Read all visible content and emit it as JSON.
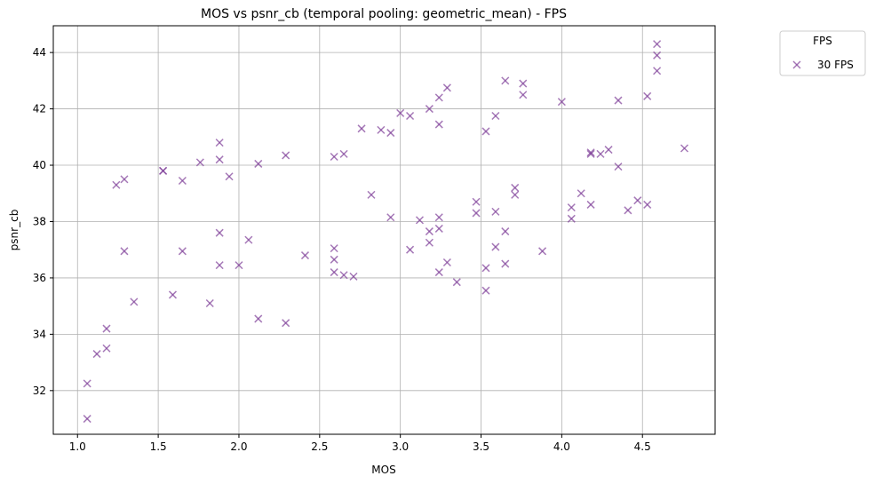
{
  "chart_data": {
    "type": "scatter",
    "title": "MOS vs psnr_cb (temporal pooling: geometric_mean) - FPS",
    "xlabel": "MOS",
    "ylabel": "psnr_cb",
    "xlim": [
      0.85,
      4.95
    ],
    "ylim": [
      30.45,
      44.95
    ],
    "xticks": [
      1.0,
      1.5,
      2.0,
      2.5,
      3.0,
      3.5,
      4.0,
      4.5
    ],
    "xtick_labels": [
      "1.0",
      "1.5",
      "2.0",
      "2.5",
      "3.0",
      "3.5",
      "4.0",
      "4.5"
    ],
    "yticks": [
      32,
      34,
      36,
      38,
      40,
      42,
      44
    ],
    "ytick_labels": [
      "32",
      "34",
      "36",
      "38",
      "40",
      "42",
      "44"
    ],
    "grid": true,
    "legend": {
      "title": "FPS",
      "placement": "outside-top-right"
    },
    "marker": "x",
    "series": [
      {
        "name": "30 FPS",
        "color": "#7f3f98",
        "points": [
          [
            1.06,
            31.0
          ],
          [
            1.06,
            32.25
          ],
          [
            1.12,
            33.3
          ],
          [
            1.18,
            33.5
          ],
          [
            1.18,
            34.2
          ],
          [
            1.29,
            36.95
          ],
          [
            1.35,
            35.15
          ],
          [
            1.24,
            39.3
          ],
          [
            1.29,
            39.5
          ],
          [
            1.53,
            39.8
          ],
          [
            1.53,
            39.8
          ],
          [
            1.59,
            35.4
          ],
          [
            1.65,
            36.95
          ],
          [
            1.65,
            39.45
          ],
          [
            1.76,
            40.1
          ],
          [
            1.82,
            35.1
          ],
          [
            1.88,
            36.45
          ],
          [
            1.88,
            37.6
          ],
          [
            1.88,
            40.2
          ],
          [
            1.88,
            40.8
          ],
          [
            1.94,
            39.6
          ],
          [
            2.0,
            36.45
          ],
          [
            2.06,
            37.35
          ],
          [
            2.12,
            34.55
          ],
          [
            2.12,
            40.05
          ],
          [
            2.29,
            34.4
          ],
          [
            2.29,
            40.35
          ],
          [
            2.41,
            36.8
          ],
          [
            2.59,
            36.2
          ],
          [
            2.59,
            36.65
          ],
          [
            2.59,
            37.05
          ],
          [
            2.59,
            40.3
          ],
          [
            2.65,
            36.1
          ],
          [
            2.65,
            40.4
          ],
          [
            2.71,
            36.05
          ],
          [
            2.76,
            41.3
          ],
          [
            2.82,
            38.95
          ],
          [
            2.88,
            41.25
          ],
          [
            2.94,
            38.15
          ],
          [
            2.94,
            41.15
          ],
          [
            3.0,
            41.85
          ],
          [
            3.06,
            37.0
          ],
          [
            3.06,
            41.75
          ],
          [
            3.12,
            38.05
          ],
          [
            3.18,
            37.25
          ],
          [
            3.18,
            37.65
          ],
          [
            3.18,
            42.0
          ],
          [
            3.24,
            36.2
          ],
          [
            3.24,
            37.75
          ],
          [
            3.24,
            38.15
          ],
          [
            3.24,
            41.45
          ],
          [
            3.24,
            42.4
          ],
          [
            3.29,
            36.55
          ],
          [
            3.29,
            42.75
          ],
          [
            3.35,
            35.85
          ],
          [
            3.47,
            38.3
          ],
          [
            3.47,
            38.7
          ],
          [
            3.53,
            35.55
          ],
          [
            3.53,
            36.35
          ],
          [
            3.53,
            41.2
          ],
          [
            3.59,
            37.1
          ],
          [
            3.59,
            38.35
          ],
          [
            3.59,
            41.75
          ],
          [
            3.65,
            36.5
          ],
          [
            3.65,
            37.65
          ],
          [
            3.65,
            43.0
          ],
          [
            3.71,
            38.95
          ],
          [
            3.71,
            39.2
          ],
          [
            3.76,
            42.5
          ],
          [
            3.76,
            42.9
          ],
          [
            3.88,
            36.95
          ],
          [
            4.0,
            42.25
          ],
          [
            4.06,
            38.1
          ],
          [
            4.06,
            38.5
          ],
          [
            4.12,
            39.0
          ],
          [
            4.18,
            38.6
          ],
          [
            4.18,
            40.45
          ],
          [
            4.18,
            40.4
          ],
          [
            4.24,
            40.4
          ],
          [
            4.29,
            40.55
          ],
          [
            4.35,
            39.95
          ],
          [
            4.35,
            42.3
          ],
          [
            4.41,
            38.4
          ],
          [
            4.47,
            38.75
          ],
          [
            4.53,
            38.6
          ],
          [
            4.53,
            42.45
          ],
          [
            4.59,
            43.35
          ],
          [
            4.59,
            43.9
          ],
          [
            4.59,
            44.3
          ],
          [
            4.76,
            40.6
          ]
        ]
      }
    ]
  }
}
